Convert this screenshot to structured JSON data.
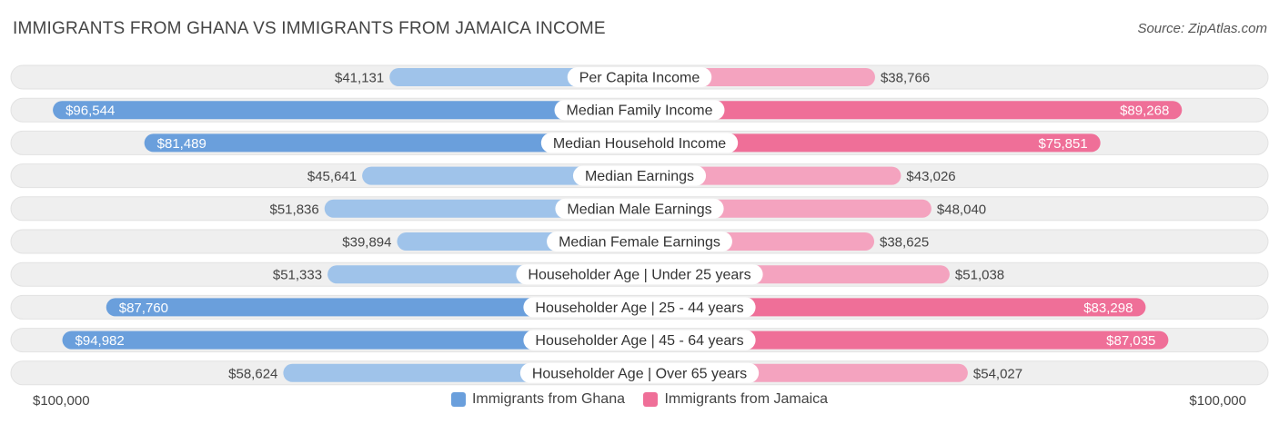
{
  "title": "IMMIGRANTS FROM GHANA VS IMMIGRANTS FROM JAMAICA INCOME",
  "source": "Source: ZipAtlas.com",
  "colors": {
    "ghana_light": "#9fc3ea",
    "ghana_dark": "#6a9fdc",
    "jamaica_light": "#f4a3bf",
    "jamaica_dark": "#ef6f98",
    "row_bg": "#efefef"
  },
  "chart_data": {
    "type": "bar",
    "orientation": "horizontal-diverging",
    "title": "IMMIGRANTS FROM GHANA VS IMMIGRANTS FROM JAMAICA INCOME",
    "xlim": [
      0,
      100000
    ],
    "axis_left_label": "$100,000",
    "axis_right_label": "$100,000",
    "categories": [
      "Per Capita Income",
      "Median Family Income",
      "Median Household Income",
      "Median Earnings",
      "Median Male Earnings",
      "Median Female Earnings",
      "Householder Age | Under 25 years",
      "Householder Age | 25 - 44 years",
      "Householder Age | 45 - 64 years",
      "Householder Age | Over 65 years"
    ],
    "series": [
      {
        "name": "Immigrants from Ghana",
        "side": "left",
        "values": [
          41131,
          96544,
          81489,
          45641,
          51836,
          39894,
          51333,
          87760,
          94982,
          58624
        ],
        "labels": [
          "$41,131",
          "$96,544",
          "$81,489",
          "$45,641",
          "$51,836",
          "$39,894",
          "$51,333",
          "$87,760",
          "$94,982",
          "$58,624"
        ]
      },
      {
        "name": "Immigrants from Jamaica",
        "side": "right",
        "values": [
          38766,
          89268,
          75851,
          43026,
          48040,
          38625,
          51038,
          83298,
          87035,
          54027
        ],
        "labels": [
          "$38,766",
          "$89,268",
          "$75,851",
          "$43,026",
          "$48,040",
          "$38,625",
          "$51,038",
          "$83,298",
          "$87,035",
          "$54,027"
        ]
      }
    ],
    "legend": [
      "Immigrants from Ghana",
      "Immigrants from Jamaica"
    ]
  }
}
